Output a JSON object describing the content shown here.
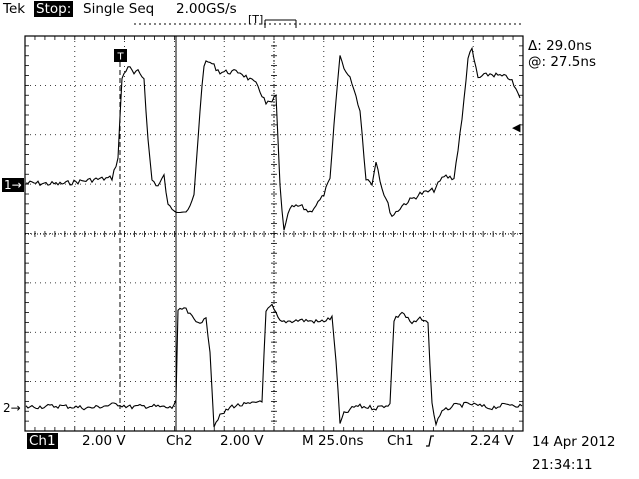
{
  "header": {
    "brand": "Tek",
    "acq_state": "Stop:",
    "acq_mode": "Single Seq",
    "sample_rate": "2.00GS/s",
    "trigger_position_marker": "[T]"
  },
  "cursors": {
    "delta_label": "Δ: 29.0ns",
    "at_label": "@: 27.5ns"
  },
  "markers": {
    "ch1": "1→",
    "ch2": "2→",
    "trigger_marker": "T",
    "trigger_level_arrow": "◀"
  },
  "footer": {
    "ch1_label": "Ch1",
    "ch1_scale": "2.00 V",
    "ch2_label": "Ch2",
    "ch2_scale": "2.00 V",
    "timebase": "M 25.0ns",
    "trigger_source": "Ch1",
    "trigger_slope_icon": "rising-edge-icon",
    "trigger_level": "2.24 V",
    "date": "14 Apr 2012",
    "time": "21:34:11"
  },
  "colors": {
    "background": "#ffffff",
    "trace": "#000000",
    "graticule": "#000000"
  }
}
